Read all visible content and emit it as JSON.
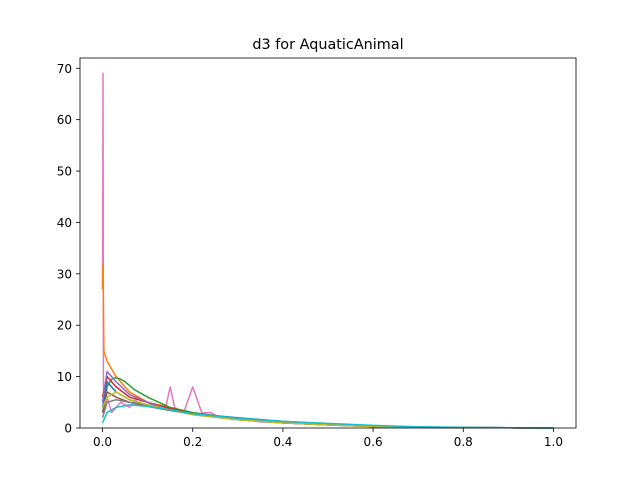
{
  "chart_data": {
    "type": "line",
    "title": "d3 for AquaticAnimal",
    "xlabel": "",
    "ylabel": "",
    "xlim": [
      -0.05,
      1.05
    ],
    "ylim": [
      0,
      72
    ],
    "xticks": [
      0.0,
      0.2,
      0.4,
      0.6,
      0.8,
      1.0
    ],
    "xtick_labels": [
      "0.0",
      "0.2",
      "0.4",
      "0.6",
      "0.8",
      "1.0"
    ],
    "yticks": [
      0,
      10,
      20,
      30,
      40,
      50,
      60,
      70
    ],
    "ytick_labels": [
      "0",
      "10",
      "20",
      "30",
      "40",
      "50",
      "60",
      "70"
    ],
    "grid": false,
    "legend": "none",
    "series": [
      {
        "color": "#e377c2",
        "x": [
          0.0,
          0.001,
          0.002,
          0.004,
          0.01,
          0.02,
          0.04,
          0.06,
          0.08,
          0.1,
          0.12,
          0.14,
          0.15,
          0.16,
          0.18,
          0.2,
          0.22,
          0.24,
          0.26,
          0.3,
          0.35,
          0.4,
          0.5,
          0.6,
          0.7,
          0.8,
          0.9,
          1.0
        ],
        "y": [
          27,
          69,
          8,
          3,
          6,
          3,
          5,
          4,
          6,
          5,
          4,
          4,
          8,
          4,
          3,
          8,
          3,
          3,
          2,
          1.8,
          1.2,
          1.0,
          0.6,
          0.3,
          0.15,
          0.08,
          0.04,
          0.0
        ]
      },
      {
        "color": "#ff7f0e",
        "x": [
          0.0,
          0.001,
          0.003,
          0.01,
          0.03,
          0.06,
          0.1,
          0.15,
          0.2,
          0.3,
          0.4,
          0.5,
          0.6,
          0.7,
          0.8,
          0.9,
          1.0
        ],
        "y": [
          27,
          32,
          15,
          13,
          10,
          7,
          5,
          4,
          3,
          1.8,
          1.0,
          0.6,
          0.3,
          0.15,
          0.08,
          0.04,
          0.0
        ]
      },
      {
        "color": "#2ca02c",
        "x": [
          0.0,
          0.005,
          0.01,
          0.02,
          0.03,
          0.04,
          0.05,
          0.07,
          0.1,
          0.15,
          0.2,
          0.3,
          0.4,
          0.5,
          0.6,
          0.7,
          0.8,
          0.9,
          1.0
        ],
        "y": [
          3,
          5,
          8,
          9.5,
          9.8,
          9.5,
          9,
          7.5,
          6,
          4,
          3,
          1.8,
          1.1,
          0.7,
          0.35,
          0.18,
          0.08,
          0.04,
          0.0
        ]
      },
      {
        "color": "#1f77b4",
        "x": [
          0.0,
          0.01,
          0.03,
          0.06,
          0.1,
          0.15,
          0.2,
          0.3,
          0.4,
          0.5,
          0.6,
          0.7,
          0.8,
          0.9,
          1.0
        ],
        "y": [
          4,
          9,
          7,
          5.5,
          4.5,
          3.5,
          2.8,
          2.0,
          1.3,
          0.8,
          0.4,
          0.2,
          0.1,
          0.05,
          0.0
        ]
      },
      {
        "color": "#d62728",
        "x": [
          0.0,
          0.01,
          0.03,
          0.06,
          0.1,
          0.15,
          0.2,
          0.3,
          0.4,
          0.5,
          0.6,
          0.7,
          0.8,
          0.9,
          1.0
        ],
        "y": [
          6,
          10,
          8,
          6,
          5,
          3.8,
          2.8,
          1.7,
          1.0,
          0.6,
          0.3,
          0.15,
          0.08,
          0.04,
          0.0
        ]
      },
      {
        "color": "#9467bd",
        "x": [
          0.0,
          0.01,
          0.03,
          0.06,
          0.1,
          0.15,
          0.2,
          0.3,
          0.4,
          0.5,
          0.6,
          0.7,
          0.8,
          0.9,
          1.0
        ],
        "y": [
          5,
          11,
          9,
          6.5,
          5,
          3.5,
          2.6,
          1.6,
          1.0,
          0.6,
          0.3,
          0.15,
          0.08,
          0.04,
          0.0
        ]
      },
      {
        "color": "#8c564b",
        "x": [
          0.0,
          0.01,
          0.03,
          0.06,
          0.1,
          0.15,
          0.2,
          0.3,
          0.4,
          0.5,
          0.6,
          0.7,
          0.8,
          0.9,
          1.0
        ],
        "y": [
          3,
          7,
          6,
          5,
          4.2,
          3.4,
          2.7,
          1.7,
          1.1,
          0.7,
          0.35,
          0.18,
          0.08,
          0.04,
          0.0
        ]
      },
      {
        "color": "#7f7f7f",
        "x": [
          0.0,
          0.01,
          0.03,
          0.06,
          0.1,
          0.15,
          0.2,
          0.3,
          0.4,
          0.5,
          0.6,
          0.7,
          0.8,
          0.9,
          1.0
        ],
        "y": [
          2,
          5,
          5.5,
          5,
          4.5,
          3.6,
          2.8,
          1.8,
          1.2,
          0.8,
          0.4,
          0.2,
          0.1,
          0.05,
          0.0
        ]
      },
      {
        "color": "#bcbd22",
        "x": [
          0.0,
          0.01,
          0.03,
          0.06,
          0.1,
          0.15,
          0.2,
          0.3,
          0.4,
          0.5,
          0.6,
          0.7,
          0.8,
          0.9,
          1.0
        ],
        "y": [
          4,
          6,
          7,
          5.5,
          4.5,
          3.5,
          2.6,
          1.6,
          1.0,
          0.6,
          0.3,
          0.15,
          0.08,
          0.04,
          0.0
        ]
      },
      {
        "color": "#17becf",
        "x": [
          0.0,
          0.01,
          0.03,
          0.06,
          0.1,
          0.15,
          0.2,
          0.3,
          0.4,
          0.5,
          0.6,
          0.7,
          0.8,
          0.9,
          1.0
        ],
        "y": [
          1,
          3,
          4,
          4.5,
          4.2,
          3.5,
          2.8,
          1.9,
          1.3,
          0.9,
          0.5,
          0.25,
          0.12,
          0.05,
          0.0
        ]
      }
    ]
  }
}
